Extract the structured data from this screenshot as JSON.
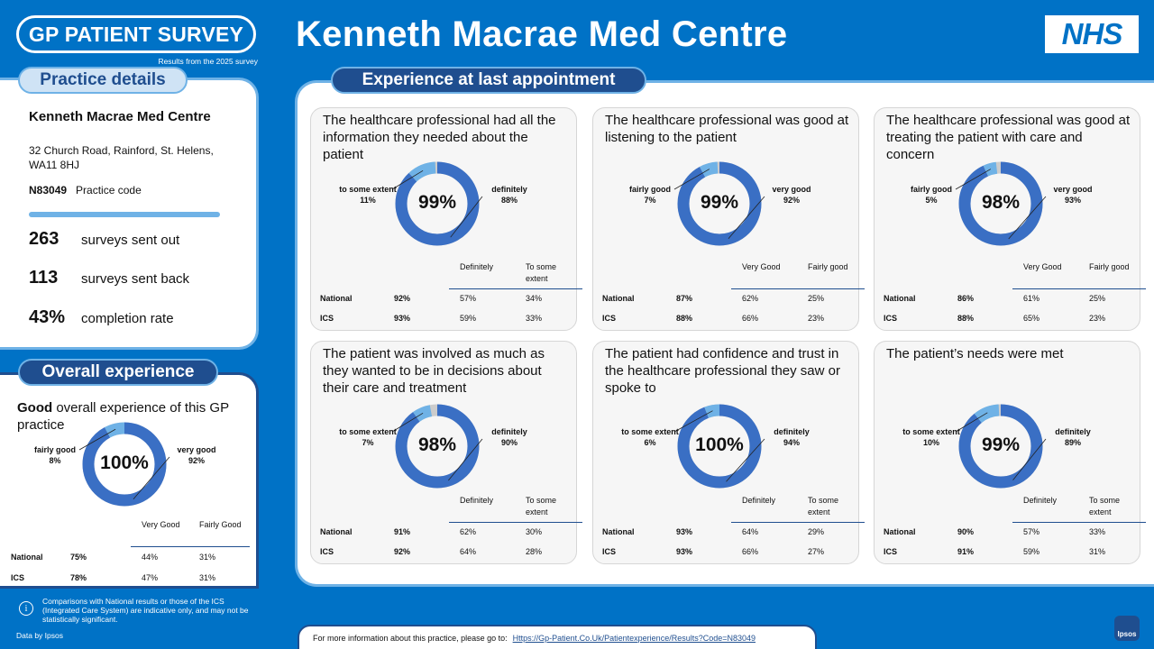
{
  "header": {
    "logo": "GP PATIENT SURVEY",
    "subtitle": "Results from the 2025 survey",
    "title": "Kenneth Macrae Med Centre",
    "nhs": "NHS"
  },
  "practice": {
    "section_label": "Practice details",
    "name": "Kenneth Macrae Med Centre",
    "address": "32 Church Road, Rainford, St. Helens, WA11 8HJ",
    "code": "N83049",
    "code_label": "Practice code",
    "stats": [
      {
        "num": "263",
        "label": "surveys sent out"
      },
      {
        "num": "113",
        "label": "surveys sent back"
      },
      {
        "num": "43%",
        "label": "completion rate"
      }
    ]
  },
  "overall": {
    "section_label": "Overall experience",
    "text_bold": "Good",
    "text_rest": " overall experience of this GP practice",
    "pct": "100%",
    "left_label": "fairly good",
    "left_value": "8%",
    "right_label": "very good",
    "right_value": "92%",
    "col1": "Very Good",
    "col2": "Fairly Good",
    "rows": [
      {
        "name": "National",
        "total": "75%",
        "a": "44%",
        "b": "31%"
      },
      {
        "name": "ICS",
        "total": "78%",
        "a": "47%",
        "b": "31%"
      }
    ]
  },
  "experience": {
    "section_label": "Experience at last appointment",
    "cards": [
      {
        "title": "The healthcare professional had all the information they needed about the patient",
        "pct": "99%",
        "left_label": "to some extent",
        "left_value": "11%",
        "right_label": "definitely",
        "right_value": "88%",
        "col1": "Definitely",
        "col2": "To some extent",
        "rows": [
          {
            "name": "National",
            "total": "92%",
            "a": "57%",
            "b": "34%"
          },
          {
            "name": "ICS",
            "total": "93%",
            "a": "59%",
            "b": "33%"
          }
        ]
      },
      {
        "title": "The healthcare professional was good at listening to the patient",
        "pct": "99%",
        "left_label": "fairly good",
        "left_value": "7%",
        "right_label": "very good",
        "right_value": "92%",
        "col1": "Very Good",
        "col2": "Fairly good",
        "rows": [
          {
            "name": "National",
            "total": "87%",
            "a": "62%",
            "b": "25%"
          },
          {
            "name": "ICS",
            "total": "88%",
            "a": "66%",
            "b": "23%"
          }
        ]
      },
      {
        "title": "The healthcare professional was good at treating the patient with care and concern",
        "pct": "98%",
        "left_label": "fairly good",
        "left_value": "5%",
        "right_label": "very good",
        "right_value": "93%",
        "col1": "Very Good",
        "col2": "Fairly good",
        "rows": [
          {
            "name": "National",
            "total": "86%",
            "a": "61%",
            "b": "25%"
          },
          {
            "name": "ICS",
            "total": "88%",
            "a": "65%",
            "b": "23%"
          }
        ]
      },
      {
        "title": "The patient was involved as much as they wanted to be in decisions about their care and treatment",
        "pct": "98%",
        "left_label": "to some extent",
        "left_value": "7%",
        "right_label": "definitely",
        "right_value": "90%",
        "col1": "Definitely",
        "col2": "To some extent",
        "rows": [
          {
            "name": "National",
            "total": "91%",
            "a": "62%",
            "b": "30%"
          },
          {
            "name": "ICS",
            "total": "92%",
            "a": "64%",
            "b": "28%"
          }
        ]
      },
      {
        "title": "The patient had confidence and trust in the healthcare professional they saw or spoke to",
        "pct": "100%",
        "left_label": "to some extent",
        "left_value": "6%",
        "right_label": "definitely",
        "right_value": "94%",
        "col1": "Definitely",
        "col2": "To some extent",
        "rows": [
          {
            "name": "National",
            "total": "93%",
            "a": "64%",
            "b": "29%"
          },
          {
            "name": "ICS",
            "total": "93%",
            "a": "66%",
            "b": "27%"
          }
        ]
      },
      {
        "title": "The patient’s needs were met",
        "pct": "99%",
        "left_label": "to some extent",
        "left_value": "10%",
        "right_label": "definitely",
        "right_value": "89%",
        "col1": "Definitely",
        "col2": "To some extent",
        "rows": [
          {
            "name": "National",
            "total": "90%",
            "a": "57%",
            "b": "33%"
          },
          {
            "name": "ICS",
            "total": "91%",
            "a": "59%",
            "b": "31%"
          }
        ]
      }
    ]
  },
  "footer": {
    "note": "Comparisons with National results or those of the ICS (Integrated Care System) are indicative only, and may not be statistically significant.",
    "data_by": "Data by Ipsos",
    "info_text": "For more information about this practice, please go to:",
    "info_link": "Https://Gp-Patient.Co.Uk/Patientexperience/Results?Code=N83049",
    "ipsos": "Ipsos"
  },
  "colors": {
    "primary": "#3a6fc4",
    "secondary": "#6fb2e6",
    "remainder": "#cccccc"
  }
}
